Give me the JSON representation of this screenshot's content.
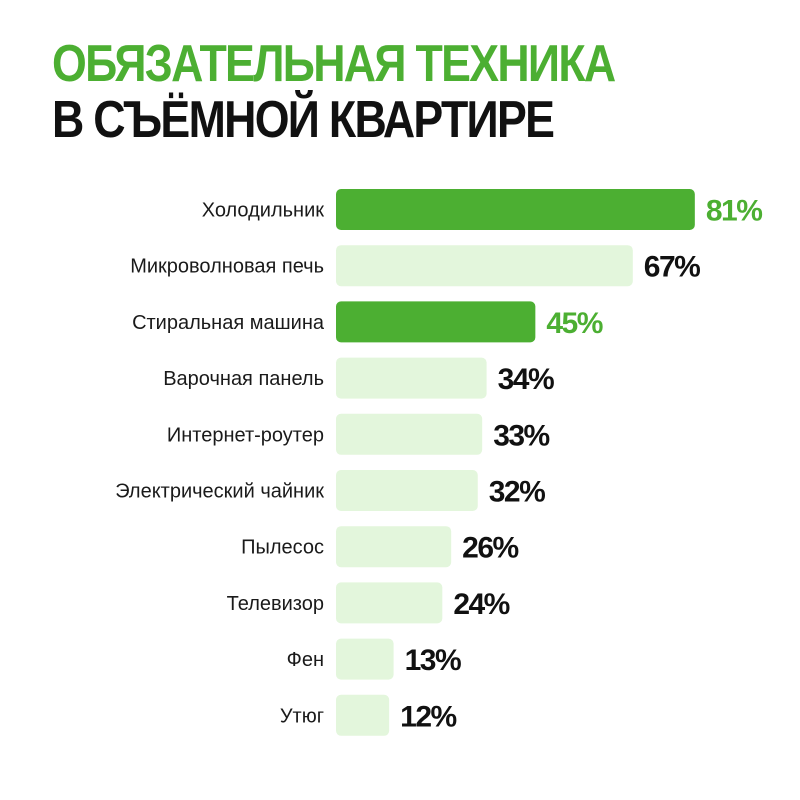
{
  "title": {
    "line1": "ОБЯЗАТЕЛЬНАЯ ТЕХНИКА",
    "line2": "В СЪЁМНОЙ КВАРТИРЕ"
  },
  "colors": {
    "highlight_bar": "#4caf32",
    "normal_bar": "#e3f6dc",
    "highlight_text": "#4caf32",
    "normal_text": "#111111",
    "title_green": "#4caf32"
  },
  "chart_data": {
    "type": "bar",
    "orientation": "horizontal",
    "categories": [
      "Холодильник",
      "Микроволновая печь",
      "Стиральная машина",
      "Варочная панель",
      "Интернет-роутер",
      "Электрический чайник",
      "Пылесос",
      "Телевизор",
      "Фен",
      "Утюг"
    ],
    "values": [
      81,
      67,
      45,
      34,
      33,
      32,
      26,
      24,
      13,
      12
    ],
    "value_labels": [
      "81%",
      "67%",
      "45%",
      "34%",
      "33%",
      "32%",
      "26%",
      "24%",
      "13%",
      "12%"
    ],
    "highlighted": [
      true,
      false,
      true,
      false,
      false,
      false,
      false,
      false,
      false,
      false
    ],
    "unit": "%",
    "xlim": [
      0,
      100
    ],
    "grid": false,
    "legend": false
  }
}
